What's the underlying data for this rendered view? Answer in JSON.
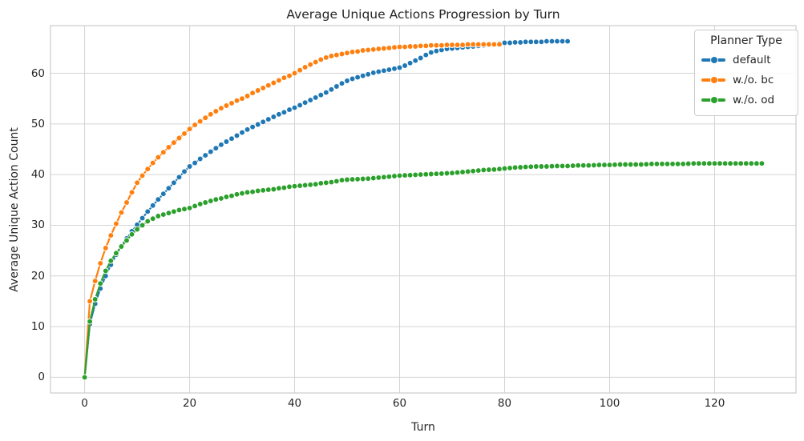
{
  "chart_data": {
    "type": "line",
    "title": "Average Unique Actions Progression by Turn",
    "xlabel": "Turn",
    "ylabel": "Average Unique Action Count",
    "legend": {
      "title": "Planner Type",
      "position": "upper right"
    },
    "grid": true,
    "background": "#ffffff",
    "grid_color": "#d4d4d4",
    "spine_color": "#cccccc",
    "text_color": "#262626",
    "xlim": [
      -6.5,
      135.5
    ],
    "ylim": [
      -3.1,
      69.4
    ],
    "xticks": [
      0,
      20,
      40,
      60,
      80,
      100,
      120
    ],
    "yticks": [
      0,
      10,
      20,
      30,
      40,
      50,
      60
    ],
    "marker": "o",
    "series": [
      {
        "name": "default",
        "color": "#1f77b4",
        "x_start": 0,
        "x_step": 1,
        "values": [
          0,
          10.5,
          14.5,
          17.5,
          20.0,
          22.2,
          24.2,
          25.9,
          27.4,
          28.8,
          30.1,
          31.4,
          32.7,
          33.9,
          35.1,
          36.2,
          37.3,
          38.4,
          39.5,
          40.6,
          41.6,
          42.3,
          43.1,
          43.8,
          44.5,
          45.2,
          45.9,
          46.5,
          47.1,
          47.7,
          48.3,
          48.9,
          49.4,
          49.9,
          50.4,
          50.9,
          51.4,
          51.9,
          52.3,
          52.8,
          53.2,
          53.7,
          54.2,
          54.7,
          55.2,
          55.7,
          56.2,
          56.8,
          57.4,
          58.0,
          58.5,
          58.9,
          59.2,
          59.5,
          59.8,
          60.1,
          60.3,
          60.5,
          60.7,
          60.9,
          61.1,
          61.5,
          62.0,
          62.5,
          63.0,
          63.6,
          64.1,
          64.4,
          64.6,
          64.8,
          64.9,
          65.0,
          65.1,
          65.2,
          65.3,
          65.4,
          65.5,
          65.6,
          65.8,
          65.9,
          66.0,
          66.0,
          66.1,
          66.1,
          66.2,
          66.2,
          66.2,
          66.2,
          66.3,
          66.3,
          66.3,
          66.3,
          66.3
        ]
      },
      {
        "name": "w./o. bc",
        "color": "#ff7f0e",
        "x_start": 0,
        "x_step": 1,
        "values": [
          0,
          15.0,
          19.0,
          22.5,
          25.5,
          28.0,
          30.3,
          32.5,
          34.5,
          36.5,
          38.4,
          39.8,
          41.1,
          42.3,
          43.4,
          44.4,
          45.4,
          46.3,
          47.2,
          48.1,
          49.0,
          49.8,
          50.5,
          51.2,
          51.9,
          52.5,
          53.1,
          53.6,
          54.1,
          54.6,
          55.0,
          55.5,
          56.1,
          56.6,
          57.1,
          57.6,
          58.1,
          58.6,
          59.1,
          59.5,
          60.0,
          60.6,
          61.2,
          61.7,
          62.2,
          62.7,
          63.1,
          63.4,
          63.6,
          63.8,
          64.0,
          64.2,
          64.3,
          64.5,
          64.6,
          64.7,
          64.8,
          64.9,
          65.0,
          65.1,
          65.2,
          65.2,
          65.3,
          65.3,
          65.4,
          65.4,
          65.5,
          65.5,
          65.5,
          65.6,
          65.6,
          65.6,
          65.6,
          65.7,
          65.7,
          65.7,
          65.7,
          65.7,
          65.7,
          65.7
        ]
      },
      {
        "name": "w./o. od",
        "color": "#2ca02c",
        "x_start": 0,
        "x_step": 1,
        "values": [
          0,
          11.0,
          15.4,
          18.5,
          21.0,
          23.0,
          24.5,
          25.8,
          27.0,
          28.2,
          29.2,
          30.0,
          30.8,
          31.3,
          31.8,
          32.1,
          32.4,
          32.7,
          33.0,
          33.2,
          33.4,
          33.8,
          34.2,
          34.5,
          34.8,
          35.1,
          35.3,
          35.6,
          35.8,
          36.1,
          36.3,
          36.5,
          36.6,
          36.8,
          36.9,
          37.0,
          37.1,
          37.3,
          37.4,
          37.6,
          37.7,
          37.8,
          37.9,
          38.0,
          38.1,
          38.3,
          38.4,
          38.5,
          38.7,
          38.9,
          39.0,
          39.05,
          39.1,
          39.15,
          39.2,
          39.3,
          39.4,
          39.5,
          39.6,
          39.7,
          39.8,
          39.85,
          39.9,
          39.95,
          40.0,
          40.05,
          40.1,
          40.15,
          40.2,
          40.25,
          40.3,
          40.4,
          40.5,
          40.6,
          40.7,
          40.8,
          40.9,
          40.95,
          41.0,
          41.1,
          41.2,
          41.3,
          41.4,
          41.45,
          41.5,
          41.55,
          41.6,
          41.6,
          41.6,
          41.65,
          41.7,
          41.7,
          41.7,
          41.75,
          41.8,
          41.8,
          41.8,
          41.85,
          41.9,
          41.9,
          41.9,
          41.95,
          42.0,
          42.0,
          42.0,
          42.0,
          42.0,
          42.05,
          42.1,
          42.1,
          42.1,
          42.1,
          42.1,
          42.1,
          42.1,
          42.15,
          42.2,
          42.2,
          42.2,
          42.2,
          42.2,
          42.2,
          42.2,
          42.2,
          42.2,
          42.2,
          42.2,
          42.2,
          42.2,
          42.2
        ]
      }
    ]
  }
}
